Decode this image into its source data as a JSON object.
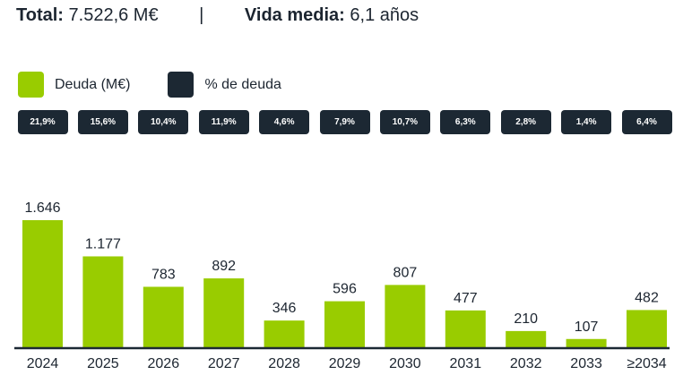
{
  "summary": {
    "total_label": "Total:",
    "total_value": "7.522,6 M€",
    "separator": "|",
    "life_label": "Vida media:",
    "life_value": "6,1 años"
  },
  "legend": [
    {
      "label": "Deuda (M€)",
      "color": "#99cc00"
    },
    {
      "label": "% de deuda",
      "color": "#1c2833"
    }
  ],
  "chart_data": {
    "type": "bar",
    "title": "",
    "xlabel": "",
    "ylabel": "Deuda (M€)",
    "categories": [
      "2024",
      "2025",
      "2026",
      "2027",
      "2028",
      "2029",
      "2030",
      "2031",
      "2032",
      "2033",
      "≥2034"
    ],
    "values": [
      1646,
      1177,
      783,
      892,
      346,
      596,
      807,
      477,
      210,
      107,
      482
    ],
    "value_labels": [
      "1.646",
      "1.177",
      "783",
      "892",
      "346",
      "596",
      "807",
      "477",
      "210",
      "107",
      "482"
    ],
    "percent_labels": [
      "21,9%",
      "15,6%",
      "10,4%",
      "11,9%",
      "4,6%",
      "7,9%",
      "10,7%",
      "6,3%",
      "2,8%",
      "1,4%",
      "6,4%"
    ],
    "series": [
      {
        "name": "Deuda (M€)",
        "values": [
          1646,
          1177,
          783,
          892,
          346,
          596,
          807,
          477,
          210,
          107,
          482
        ]
      },
      {
        "name": "% de deuda",
        "values": [
          21.9,
          15.6,
          10.4,
          11.9,
          4.6,
          7.9,
          10.7,
          6.3,
          2.8,
          1.4,
          6.4
        ]
      }
    ],
    "ylim": [
      0,
      1646
    ],
    "grid": false,
    "legend_position": "top-left",
    "bar_color": "#99cc00",
    "axis_color": "#1c2833"
  }
}
